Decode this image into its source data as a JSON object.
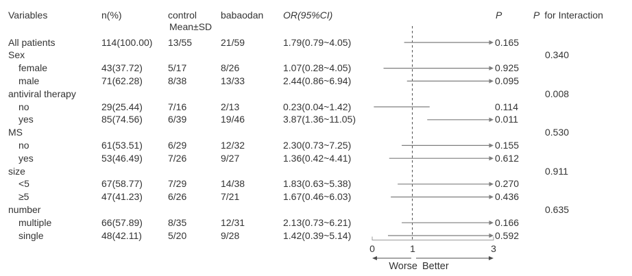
{
  "header": {
    "variables": "Variables",
    "n_pct": "n(%)",
    "control": "control",
    "babaodan": "babaodan",
    "mean_sd": "Mean±SD",
    "or_ci": "OR(95%CI)",
    "p": "P",
    "p_for_interaction_symbol": "P",
    "p_for_interaction_rest": "for Interaction"
  },
  "axis": {
    "ticks": [
      "0",
      "1",
      "3"
    ],
    "min": 0,
    "max": 3,
    "reference_line": 1,
    "worse_label": "Worse",
    "better_label": "Better"
  },
  "colors": {
    "text": "#333333",
    "ci_line": "#7d7d7d",
    "axis_line": "#9a9a9a",
    "dashed_reference": "#4d4d4d",
    "direction_arrow": "#4d4d4d"
  },
  "rows": [
    {
      "label": "All patients",
      "indent": false,
      "n": "114(100.00)",
      "control": "13/55",
      "babaodan": "21/59",
      "or_ci": "1.79(0.79~4.05)",
      "ci_low": 0.79,
      "ci_high": 4.05,
      "p": "0.165"
    },
    {
      "label": "Sex",
      "indent": false,
      "p_interaction": "0.340"
    },
    {
      "label": "female",
      "indent": true,
      "n": "43(37.72)",
      "control": "5/17",
      "babaodan": "8/26",
      "or_ci": "1.07(0.28~4.05)",
      "ci_low": 0.28,
      "ci_high": 4.05,
      "p": "0.925"
    },
    {
      "label": "male",
      "indent": true,
      "n": "71(62.28)",
      "control": "8/38",
      "babaodan": "13/33",
      "or_ci": "2.44(0.86~6.94)",
      "ci_low": 0.86,
      "ci_high": 6.94,
      "p": "0.095"
    },
    {
      "label": "antiviral therapy",
      "indent": false,
      "p_interaction": "0.008"
    },
    {
      "label": "no",
      "indent": true,
      "n": "29(25.44)",
      "control": "7/16",
      "babaodan": "2/13",
      "or_ci": "0.23(0.04~1.42)",
      "ci_low": 0.04,
      "ci_high": 1.42,
      "p": "0.114"
    },
    {
      "label": "yes",
      "indent": true,
      "n": "85(74.56)",
      "control": "6/39",
      "babaodan": "19/46",
      "or_ci": "3.87(1.36~11.05)",
      "ci_low": 1.36,
      "ci_high": 11.05,
      "p": "0.011"
    },
    {
      "label": "MS",
      "indent": false,
      "p_interaction": "0.530"
    },
    {
      "label": "no",
      "indent": true,
      "n": "61(53.51)",
      "control": "6/29",
      "babaodan": "12/32",
      "or_ci": "2.30(0.73~7.25)",
      "ci_low": 0.73,
      "ci_high": 7.25,
      "p": "0.155"
    },
    {
      "label": "yes",
      "indent": true,
      "n": "53(46.49)",
      "control": "7/26",
      "babaodan": "9/27",
      "or_ci": "1.36(0.42~4.41)",
      "ci_low": 0.42,
      "ci_high": 4.41,
      "p": "0.612"
    },
    {
      "label": "size",
      "indent": false,
      "p_interaction": "0.911"
    },
    {
      "label": "<5",
      "indent": true,
      "n": "67(58.77)",
      "control": "7/29",
      "babaodan": "14/38",
      "or_ci": "1.83(0.63~5.38)",
      "ci_low": 0.63,
      "ci_high": 5.38,
      "p": "0.270"
    },
    {
      "label": "≥5",
      "indent": true,
      "n": "47(41.23)",
      "control": "6/26",
      "babaodan": "7/21",
      "or_ci": "1.67(0.46~6.03)",
      "ci_low": 0.46,
      "ci_high": 6.03,
      "p": "0.436"
    },
    {
      "label": "number",
      "indent": false,
      "p_interaction": "0.635"
    },
    {
      "label": "multiple",
      "indent": true,
      "n": "66(57.89)",
      "control": "8/35",
      "babaodan": "12/31",
      "or_ci": "2.13(0.73~6.21)",
      "ci_low": 0.73,
      "ci_high": 6.21,
      "p": "0.166"
    },
    {
      "label": "single",
      "indent": true,
      "n": "48(42.11)",
      "control": "5/20",
      "babaodan": "9/28",
      "or_ci": "1.42(0.39~5.14)",
      "ci_low": 0.39,
      "ci_high": 5.14,
      "p": "0.592"
    }
  ],
  "chart_data": {
    "type": "forest",
    "title": "",
    "xlabel": "OR(95%CI)",
    "xlim": [
      0,
      3
    ],
    "x_ticks": [
      0,
      1,
      3
    ],
    "reference_line": 1,
    "direction_labels": {
      "left": "Worse",
      "right": "Better"
    },
    "arrow_when_upper_ci_exceeds": 3,
    "entries": [
      {
        "label": "All patients",
        "n_pct": "114(100.00)",
        "control_mean_sd": "13/55",
        "babaodan_mean_sd": "21/59",
        "or": 1.79,
        "ci": [
          0.79,
          4.05
        ],
        "p": 0.165
      },
      {
        "label": "Sex",
        "p_for_interaction": 0.34
      },
      {
        "label": "female",
        "n_pct": "43(37.72)",
        "control_mean_sd": "5/17",
        "babaodan_mean_sd": "8/26",
        "or": 1.07,
        "ci": [
          0.28,
          4.05
        ],
        "p": 0.925
      },
      {
        "label": "male",
        "n_pct": "71(62.28)",
        "control_mean_sd": "8/38",
        "babaodan_mean_sd": "13/33",
        "or": 2.44,
        "ci": [
          0.86,
          6.94
        ],
        "p": 0.095
      },
      {
        "label": "antiviral therapy",
        "p_for_interaction": 0.008
      },
      {
        "label": "no",
        "n_pct": "29(25.44)",
        "control_mean_sd": "7/16",
        "babaodan_mean_sd": "2/13",
        "or": 0.23,
        "ci": [
          0.04,
          1.42
        ],
        "p": 0.114
      },
      {
        "label": "yes",
        "n_pct": "85(74.56)",
        "control_mean_sd": "6/39",
        "babaodan_mean_sd": "19/46",
        "or": 3.87,
        "ci": [
          1.36,
          11.05
        ],
        "p": 0.011
      },
      {
        "label": "MS",
        "p_for_interaction": 0.53
      },
      {
        "label": "no",
        "n_pct": "61(53.51)",
        "control_mean_sd": "6/29",
        "babaodan_mean_sd": "12/32",
        "or": 2.3,
        "ci": [
          0.73,
          7.25
        ],
        "p": 0.155
      },
      {
        "label": "yes",
        "n_pct": "53(46.49)",
        "control_mean_sd": "7/26",
        "babaodan_mean_sd": "9/27",
        "or": 1.36,
        "ci": [
          0.42,
          4.41
        ],
        "p": 0.612
      },
      {
        "label": "size",
        "p_for_interaction": 0.911
      },
      {
        "label": "<5",
        "n_pct": "67(58.77)",
        "control_mean_sd": "7/29",
        "babaodan_mean_sd": "14/38",
        "or": 1.83,
        "ci": [
          0.63,
          5.38
        ],
        "p": 0.27
      },
      {
        "label": "≥5",
        "n_pct": "47(41.23)",
        "control_mean_sd": "6/26",
        "babaodan_mean_sd": "7/21",
        "or": 1.67,
        "ci": [
          0.46,
          6.03
        ],
        "p": 0.436
      },
      {
        "label": "number",
        "p_for_interaction": 0.635
      },
      {
        "label": "multiple",
        "n_pct": "66(57.89)",
        "control_mean_sd": "8/35",
        "babaodan_mean_sd": "12/31",
        "or": 2.13,
        "ci": [
          0.73,
          6.21
        ],
        "p": 0.166
      },
      {
        "label": "single",
        "n_pct": "48(42.11)",
        "control_mean_sd": "5/20",
        "babaodan_mean_sd": "9/28",
        "or": 1.42,
        "ci": [
          0.39,
          5.14
        ],
        "p": 0.592
      }
    ]
  }
}
